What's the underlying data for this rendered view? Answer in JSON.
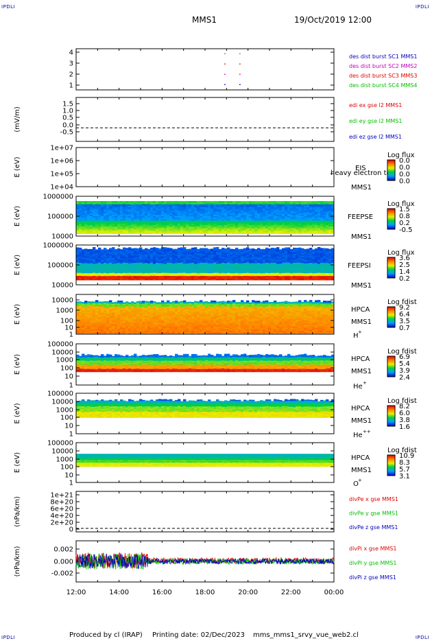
{
  "header": {
    "corner_tl": "IPDLI",
    "corner_tr": "IPDLI",
    "corner_bl": "IPDLI",
    "corner_br": "IPDLI",
    "spacecraft": "MMS1",
    "datetime": "19/Oct/2019 12:00"
  },
  "footer": {
    "produced_by": "Produced by cl (IRAP)",
    "printing_date": "Printing date: 02/Dec/2023",
    "filename": "mms_mms1_srvy_vue_web2.cl"
  },
  "colors": {
    "red": "#e00000",
    "green": "#00c000",
    "blue": "#0000c0",
    "magenta": "#c000c0"
  },
  "chart_data": {
    "type": "multi-panel",
    "x_axis": {
      "range": [
        "12:00",
        "00:00"
      ],
      "tick_labels": [
        "12:00",
        "14:00",
        "16:00",
        "18:00",
        "20:00",
        "22:00",
        "00:00"
      ]
    },
    "panels": [
      {
        "id": "burst",
        "type": "scatter",
        "ylim": [
          0.5,
          4.5
        ],
        "ytick_labels": [
          "4",
          "3",
          "2",
          "1"
        ],
        "ylabel": "",
        "legend": [
          {
            "name": "des dist burst SC1 MMS1",
            "color": "#0000c0"
          },
          {
            "name": "des dist burst SC2 MMS2",
            "color": "#c000c0"
          },
          {
            "name": "des dist burst SC3 MMS3",
            "color": "#e00000"
          },
          {
            "name": "des dist burst SC4 MMS4",
            "color": "#00c000"
          }
        ],
        "points": [
          {
            "t": 18.9,
            "sc": 4
          },
          {
            "t": 19.6,
            "sc": 4
          },
          {
            "t": 18.9,
            "sc": 3
          },
          {
            "t": 19.6,
            "sc": 3
          },
          {
            "t": 18.9,
            "sc": 2
          },
          {
            "t": 19.6,
            "sc": 2
          },
          {
            "t": 18.9,
            "sc": 1
          },
          {
            "t": 19.6,
            "sc": 1
          }
        ]
      },
      {
        "id": "edi",
        "type": "line",
        "ylim": [
          -0.8,
          1.8
        ],
        "ytick_labels": [
          "1.5",
          "1.0",
          "0.5",
          "0.0",
          "-0.5"
        ],
        "ylabel": "(mV/m)",
        "legend": [
          {
            "name": "edi ex gse l2 MMS1",
            "color": "#e00000"
          },
          {
            "name": "edi ey gse l2 MMS1",
            "color": "#00c000"
          },
          {
            "name": "edi ez gse l2 MMS1",
            "color": "#0000c0"
          }
        ]
      },
      {
        "id": "eis",
        "type": "heatmap",
        "ylabel": "E (eV)",
        "ytick_labels": [
          "1e+07",
          "1e+06",
          "1e+05",
          "1e+04"
        ],
        "instrument": "EIS",
        "spacecraft": "MMS1",
        "overlap_text": "heavy electron to",
        "colorbar": {
          "title": "Log flux",
          "ticks": [
            "0.0",
            "0.0",
            "0.0",
            "0.0"
          ]
        }
      },
      {
        "id": "feepse",
        "type": "heatmap",
        "ylabel": "E (eV)",
        "ytick_labels": [
          "1000000",
          "100000",
          "10000"
        ],
        "instrument": "FEEPSE",
        "spacecraft": "MMS1",
        "colorbar": {
          "title": "Log flux",
          "ticks": [
            "1.5",
            "0.8",
            "0.2",
            "-0.5"
          ]
        }
      },
      {
        "id": "feepsi",
        "type": "heatmap",
        "ylabel": "E (eV)",
        "ytick_labels": [
          "1000000",
          "100000",
          "10000"
        ],
        "instrument": "FEEPSI",
        "spacecraft": "MMS1",
        "colorbar": {
          "title": "Log flux",
          "ticks": [
            "3.6",
            "2.5",
            "1.4",
            "0.2"
          ]
        }
      },
      {
        "id": "hpca_h",
        "type": "heatmap",
        "ylabel": "E (eV)",
        "ytick_labels": [
          "10000",
          "1000",
          "100",
          "10",
          "1"
        ],
        "instrument": "HPCA",
        "spacecraft": "MMS1",
        "species": "H",
        "charge": "+",
        "colorbar": {
          "title": "Log fdist",
          "ticks": [
            "9.2",
            "6.4",
            "3.5",
            "0.7"
          ]
        }
      },
      {
        "id": "hpca_he1",
        "type": "heatmap",
        "ylabel": "E (eV)",
        "ytick_labels": [
          "100000",
          "10000",
          "1000",
          "100",
          "10",
          "1"
        ],
        "instrument": "HPCA",
        "spacecraft": "MMS1",
        "species": "He",
        "charge": "+",
        "colorbar": {
          "title": "Log fdist",
          "ticks": [
            "6.9",
            "5.4",
            "3.9",
            "2.4"
          ]
        }
      },
      {
        "id": "hpca_he2",
        "type": "heatmap",
        "ylabel": "E (eV)",
        "ytick_labels": [
          "100000",
          "10000",
          "1000",
          "100",
          "10",
          "1"
        ],
        "instrument": "HPCA",
        "spacecraft": "MMS1",
        "species": "He",
        "charge": "++",
        "colorbar": {
          "title": "Log fdist",
          "ticks": [
            "8.2",
            "6.0",
            "3.8",
            "1.6"
          ]
        }
      },
      {
        "id": "hpca_o",
        "type": "heatmap",
        "ylabel": "E (eV)",
        "ytick_labels": [
          "100000",
          "10000",
          "1000",
          "100",
          "10",
          "1"
        ],
        "instrument": "HPCA",
        "spacecraft": "MMS1",
        "species": "O",
        "charge": "+",
        "colorbar": {
          "title": "Log fdist",
          "ticks": [
            "10.9",
            "8.3",
            "5.7",
            "3.1"
          ]
        }
      },
      {
        "id": "divpe",
        "type": "line",
        "ylabel": "(nPa/km)",
        "ylim": [
          -1e+20,
          1.05e+21
        ],
        "ytick_labels": [
          "1e+21",
          "8e+20",
          "6e+20",
          "4e+20",
          "2e+20",
          "0"
        ],
        "legend": [
          {
            "name": "divPe x gse MMS1",
            "color": "#e00000"
          },
          {
            "name": "divPe y gse MMS1",
            "color": "#00c000"
          },
          {
            "name": "divPe z gse MMS1",
            "color": "#0000c0"
          }
        ]
      },
      {
        "id": "divpi",
        "type": "line",
        "ylabel": "(nPa/km)",
        "ylim": [
          -0.0028,
          0.0028
        ],
        "ytick_labels": [
          "0.002",
          "0.000",
          "-0.002"
        ],
        "legend": [
          {
            "name": "divPi x gse MMS1",
            "color": "#e00000"
          },
          {
            "name": "divPi y gse MMS1",
            "color": "#00c000"
          },
          {
            "name": "divPi z gse MMS1",
            "color": "#0000c0"
          }
        ]
      }
    ]
  }
}
